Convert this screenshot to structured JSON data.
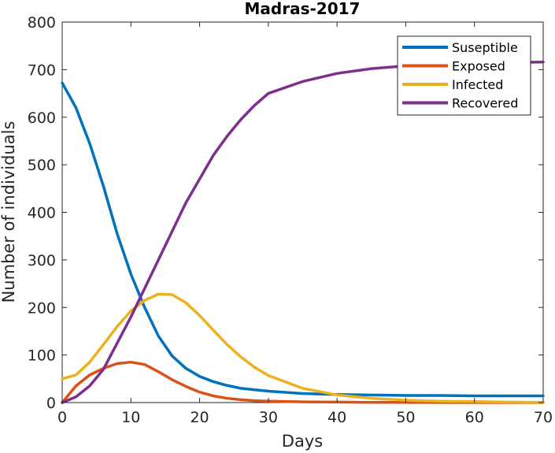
{
  "chart_data": {
    "type": "line",
    "title": "Madras-2017",
    "xlabel": "Days",
    "ylabel": "Number of individuals",
    "xlim": [
      0,
      70
    ],
    "ylim": [
      0,
      800
    ],
    "xticks": [
      0,
      10,
      20,
      30,
      40,
      50,
      60,
      70
    ],
    "yticks": [
      0,
      100,
      200,
      300,
      400,
      500,
      600,
      700,
      800
    ],
    "grid": false,
    "legend_position": "top-right",
    "x": [
      0,
      2,
      4,
      6,
      8,
      10,
      12,
      14,
      16,
      18,
      20,
      22,
      24,
      26,
      28,
      30,
      35,
      40,
      45,
      50,
      55,
      60,
      65,
      70
    ],
    "series": [
      {
        "name": "Suseptible",
        "color": "#0072BD",
        "values": [
          672,
          620,
          545,
          455,
          355,
          270,
          200,
          140,
          98,
          72,
          55,
          44,
          36,
          30,
          27,
          24,
          19,
          17,
          16,
          15,
          15,
          14,
          14,
          14
        ]
      },
      {
        "name": "Exposed",
        "color": "#D95319",
        "values": [
          0,
          35,
          58,
          72,
          82,
          85,
          80,
          65,
          48,
          34,
          22,
          14,
          9,
          6,
          4,
          3,
          1.5,
          1,
          0.5,
          0.3,
          0.2,
          0.1,
          0.1,
          0
        ]
      },
      {
        "name": "Infected",
        "color": "#EDB120",
        "values": [
          50,
          58,
          85,
          122,
          160,
          193,
          215,
          228,
          227,
          210,
          183,
          152,
          122,
          96,
          74,
          57,
          30,
          16,
          9,
          5,
          3,
          2,
          1,
          0.5
        ]
      },
      {
        "name": "Recovered",
        "color": "#7E2F8E",
        "values": [
          0,
          12,
          35,
          70,
          125,
          180,
          240,
          300,
          360,
          420,
          470,
          520,
          560,
          595,
          625,
          650,
          675,
          692,
          702,
          708,
          712,
          714,
          715,
          716
        ]
      }
    ]
  }
}
